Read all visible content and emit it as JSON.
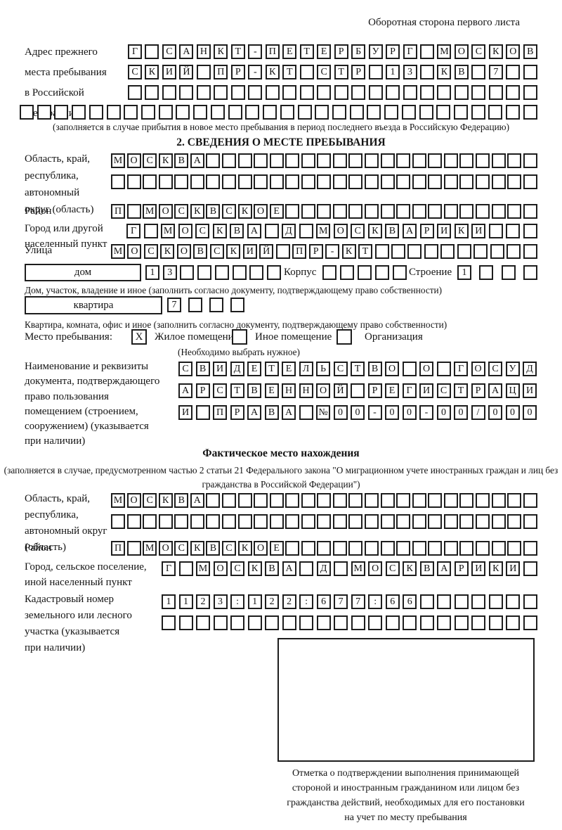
{
  "header": {
    "back_side_note": "Оборотная сторона первого листа"
  },
  "prev_address": {
    "label": [
      "Адрес прежнего",
      "места пребывания",
      "в Российской",
      "Федерации"
    ],
    "rows": [
      {
        "t": "Г САНКТ-ПЕТЕРБУРГ МОСКОВ",
        "n": 24
      },
      {
        "t": "СКИЙ ПР-КТ СТР 13 КВ 7",
        "n": 24
      },
      {
        "t": "",
        "n": 24
      },
      {
        "t": "",
        "n": 30
      }
    ],
    "note": "(заполняется в случае прибытия в новое место пребывания в период последнего въезда в Российскую Федерацию)"
  },
  "section2": {
    "title": "2. СВЕДЕНИЯ О МЕСТЕ ПРЕБЫВАНИЯ",
    "oblast": {
      "label": [
        "Область, край,",
        "республика,",
        "автономный",
        "округ (область)"
      ],
      "rows": [
        {
          "t": "МОСКВА",
          "n": 27
        },
        {
          "t": "",
          "n": 27
        }
      ]
    },
    "raion": {
      "label": "Район",
      "row": {
        "t": "П МОСКВСКОЕ",
        "n": 27
      }
    },
    "gorod": {
      "label": [
        "Город или другой",
        "населенный пункт"
      ],
      "row": {
        "t": "Г МОСКВА Д МОСКВАРИКИ",
        "n": 24
      }
    },
    "ulitsa": {
      "label": "Улица",
      "row": {
        "t": "МОСКОВСКИЙ ПР-КТ",
        "n": 26
      }
    },
    "dom": {
      "box_label": "дом",
      "number": {
        "t": "13",
        "n": 8
      },
      "korpus_label": "Корпус",
      "korpus": {
        "t": "",
        "n": 5
      },
      "stroenie_label": "Строение",
      "stroenie": {
        "t": "1",
        "n": 4
      },
      "note": "Дом, участок, владение и иное (заполнить согласно документу, подтверждающему право собственности)"
    },
    "kvartira": {
      "box_label": "квартира",
      "number": {
        "t": "7",
        "n": 4
      },
      "note": "Квартира, комната, офис и иное (заполнить согласно документу, подтверждающему право собственности)"
    },
    "mesto": {
      "label": "Место пребывания:",
      "options": [
        {
          "mark": "X",
          "label": "Жилое помещение"
        },
        {
          "mark": "",
          "label": "Иное помещение"
        },
        {
          "mark": "",
          "label": "Организация"
        }
      ],
      "note": "(Необходимо выбрать нужное)"
    },
    "doc": {
      "label": [
        "Наименование и реквизиты",
        "документа, подтверждающего",
        "право пользования",
        "помещением (строением,",
        "сооружением) (указывается",
        "при наличии)"
      ],
      "rows": [
        {
          "t": "СВИДЕТЕЛЬСТВО О ГОСУД",
          "n": 21
        },
        {
          "t": "АРСТВЕННОЙ РЕГИСТРАЦИ",
          "n": 21
        },
        {
          "t": "И ПРАВА №00-00-00/000",
          "n": 21
        }
      ]
    }
  },
  "factual": {
    "title": "Фактическое место нахождения",
    "note_lines": [
      "(заполняется в случае, предусмотренном частью 2 статьи 21 Федерального закона",
      "\"О миграционном учете иностранных граждан и лиц без гражданства в Российской Федерации\")"
    ],
    "oblast": {
      "label": [
        "Область, край,",
        "республика,",
        "автономный округ",
        "(область)"
      ],
      "rows": [
        {
          "t": "МОСКВА",
          "n": 27
        },
        {
          "t": "",
          "n": 27
        }
      ]
    },
    "raion": {
      "label": "Район",
      "row": {
        "t": "П МОСКВСКОЕ",
        "n": 27
      }
    },
    "gorod": {
      "label": [
        "Город, сельское поселение,",
        "иной населенный пункт"
      ],
      "row": {
        "t": "Г МОСКВА Д МОСКВАРИКИ",
        "n": 22
      }
    },
    "kadastr": {
      "label": [
        "Кадастровый номер",
        "земельного или лесного",
        "участка (указывается",
        "при наличии)"
      ],
      "rows": [
        {
          "t": "1123:122:677:66",
          "n": 22
        },
        {
          "t": "",
          "n": 22
        }
      ]
    },
    "stamp_caption": [
      "Отметка о подтверждении выполнения принимающей",
      "стороной и иностранным гражданином или лицом без",
      "гражданства действий, необходимых для его постановки",
      "на учет по месту пребывания"
    ]
  }
}
